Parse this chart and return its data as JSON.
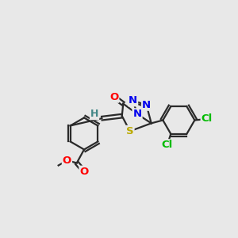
{
  "background_color": "#e8e8e8",
  "bond_color": "#2a2a2a",
  "atom_colors": {
    "O": "#ff0000",
    "N": "#0000ee",
    "S": "#bbaa00",
    "Cl": "#00bb00",
    "C": "#2a2a2a",
    "H": "#448888"
  },
  "font_size": 9.5,
  "fig_size": [
    3.0,
    3.0
  ],
  "dpi": 100,
  "lw": 1.6
}
